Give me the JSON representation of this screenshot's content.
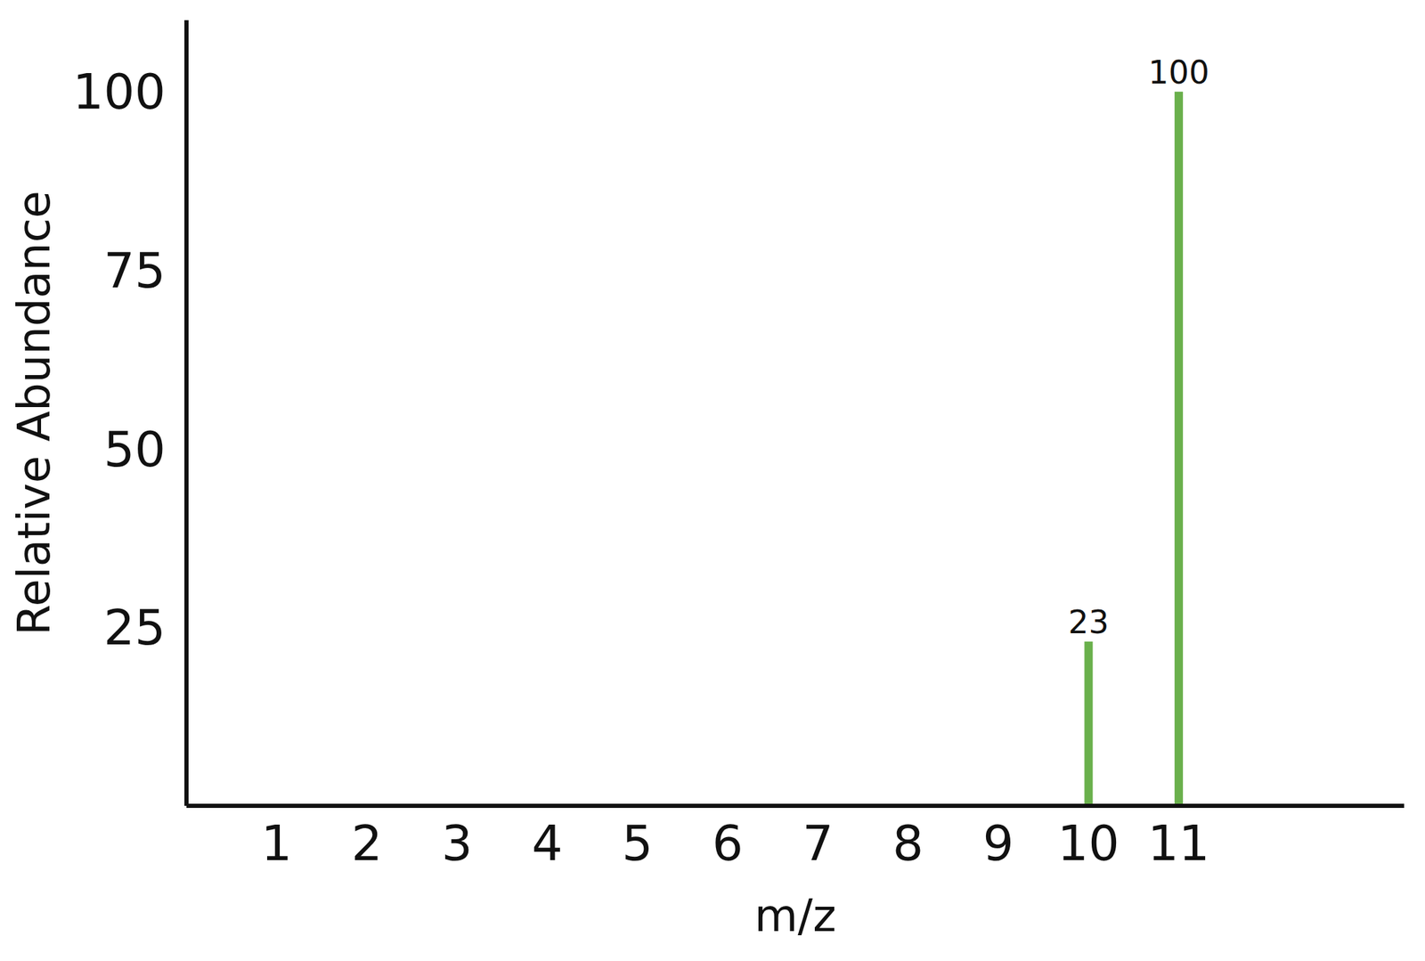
{
  "chart_data": {
    "type": "bar",
    "x": [
      10,
      11
    ],
    "values": [
      23,
      100
    ],
    "color": "#6ab04c",
    "xlabel": "m/z",
    "ylabel": "Relative Abundance",
    "xlim": [
      0,
      13.5
    ],
    "xticks": [
      1,
      2,
      3,
      4,
      5,
      6,
      7,
      8,
      9,
      10,
      11
    ],
    "ylim": [
      0,
      110
    ],
    "yticks": [
      25,
      50,
      75,
      100
    ],
    "grid": false,
    "data_labels": true
  }
}
